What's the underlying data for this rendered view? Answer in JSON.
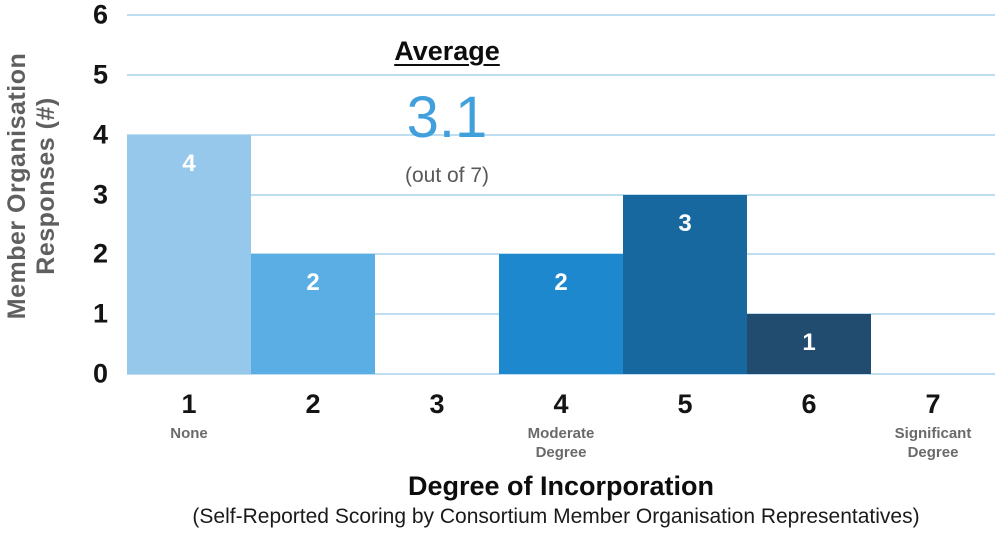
{
  "chart_data": {
    "type": "bar",
    "categories": [
      "1",
      "2",
      "3",
      "4",
      "5",
      "6",
      "7"
    ],
    "values": [
      4,
      2,
      0,
      2,
      3,
      1,
      0
    ],
    "bar_colors": [
      "#96C8EC",
      "#5BAEE4",
      "#96C8EC",
      "#1E88CE",
      "#17689F",
      "#214C6F",
      "#96C8EC"
    ],
    "category_sublabels": [
      "None",
      "",
      "",
      "Moderate Degree",
      "",
      "",
      "Significant Degree"
    ],
    "value_labels_shown": true,
    "xlabel": "Degree of Incorporation",
    "xlabel_note": "(Self-Reported Scoring by Consortium Member Organisation Representatives)",
    "ylabel_line1": "Member Organisation",
    "ylabel_line2": "Responses (#)",
    "ylim": [
      0,
      6
    ],
    "ytick_step": 1,
    "grid": "horizontal",
    "gridline_color": "#BFDDF0",
    "legend": "none",
    "annotation": {
      "title": "Average",
      "value": "3.1",
      "note": "(out of 7)",
      "value_color": "#419FDC"
    }
  }
}
